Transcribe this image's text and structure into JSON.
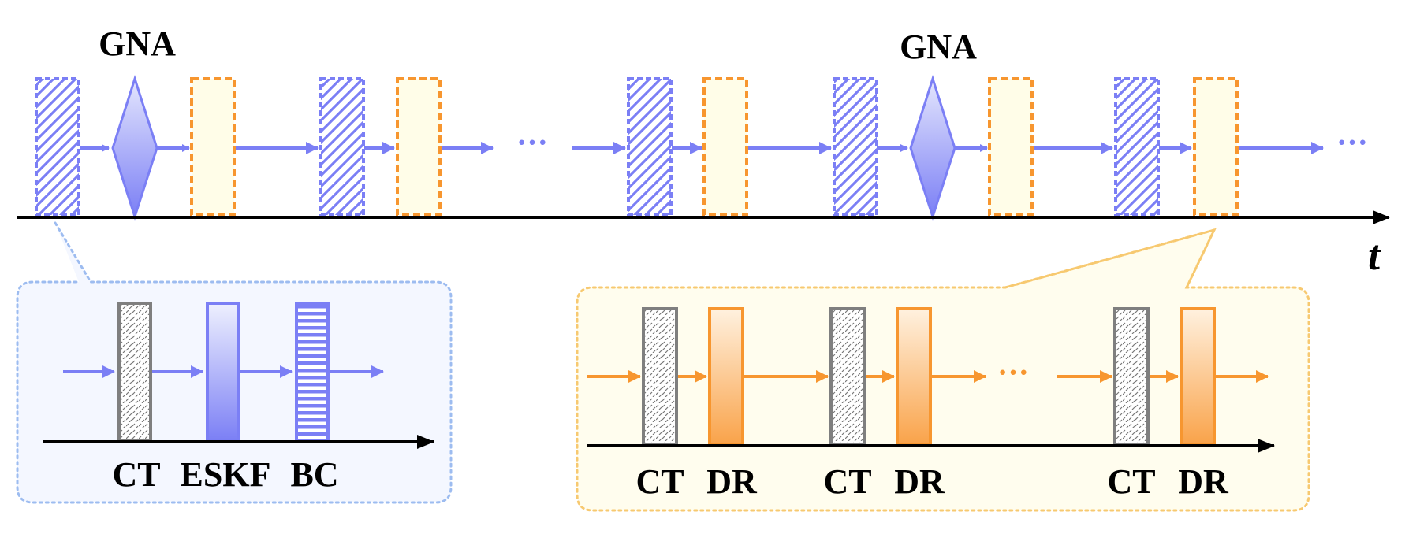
{
  "labels": {
    "gna": "GNA",
    "time_axis": "t",
    "ct": "CT",
    "eskf": "ESKF",
    "bc": "BC",
    "dr": "DR",
    "ellipsis": "···"
  },
  "colors": {
    "blue": "#7b7ff5",
    "blue_light": "#e4e6fd",
    "orange": "#f7962f",
    "orange_light": "#fffde8",
    "grey": "#7f7f7f",
    "callout_blue_bg": "#f4f7ff",
    "callout_blue_border": "#9dbcf0",
    "callout_orange_bg": "#fffdee",
    "callout_orange_border": "#f7c970",
    "axis": "#000000"
  },
  "icons": {
    "hatched_block": "diagonal-hatched-rect-icon",
    "gna_diamond": "diamond-icon",
    "dr_block": "dashed-rect-icon",
    "ct_block": "dotted-rect-icon",
    "eskf_block": "gradient-rect-icon",
    "bc_block": "striped-rect-icon"
  }
}
